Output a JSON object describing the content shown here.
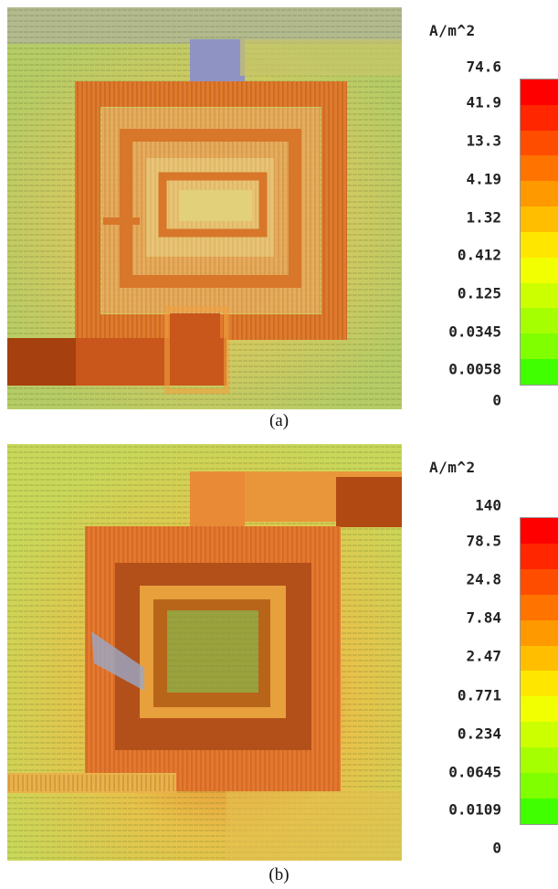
{
  "figure": {
    "panel_a": {
      "caption": "(a)",
      "unit": "A/m^2",
      "ticks": [
        "74.6",
        "41.9",
        "13.3",
        "4.19",
        "1.32",
        "0.412",
        "0.125",
        "0.0345",
        "0.0058",
        "0"
      ]
    },
    "panel_b": {
      "caption": "(b)",
      "unit": "A/m^2",
      "ticks": [
        "140",
        "78.5",
        "24.8",
        "7.84",
        "2.47",
        "0.771",
        "0.234",
        "0.0645",
        "0.0109",
        "0"
      ]
    },
    "colormap": [
      "#ff0000",
      "#ff2600",
      "#ff4d00",
      "#ff7300",
      "#ff9900",
      "#ffbf00",
      "#ffe600",
      "#f2ff00",
      "#ccff00",
      "#a6ff00",
      "#80ff00",
      "#40ff00"
    ],
    "colors": {
      "background_gray": "#a7a9c4",
      "conductor_dark": "#b34a0f",
      "field_high": "#e66a1a",
      "field_mid": "#e3b53a",
      "field_low": "#b9d25a"
    }
  }
}
